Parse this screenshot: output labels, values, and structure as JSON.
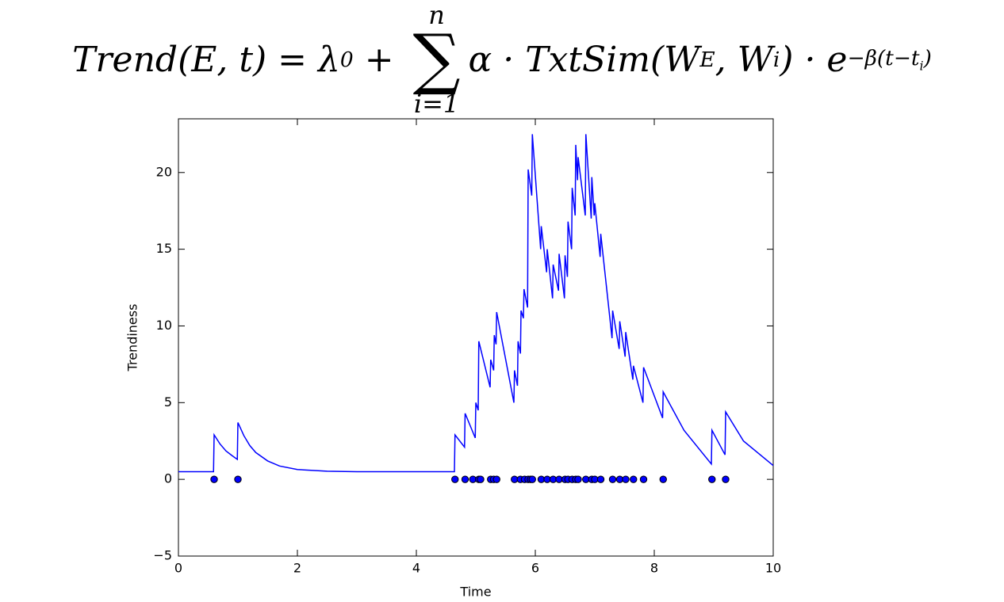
{
  "chart_data": {
    "type": "line",
    "title": {
      "lhs": "Trend(E, t) = λ",
      "lambda_sub": "0",
      "plus": " + ",
      "sum_upper": "n",
      "sum": "∑",
      "sum_lower": "i=1",
      "body": "α · TxtSim(W",
      "w_sub": "E",
      "comma": ", W",
      "wi_sub": "i",
      "close": ") · e",
      "exp": "−β(t−t",
      "exp_sub": "i",
      "exp_close": ")"
    },
    "x_label": "Time",
    "y_label": "Trendiness",
    "xlim": [
      0,
      10
    ],
    "ylim": [
      -5,
      23.5
    ],
    "xticks": [
      0,
      2,
      4,
      6,
      8,
      10
    ],
    "yticks": [
      {
        "value": -5,
        "label": "−5"
      },
      0,
      5,
      10,
      15,
      20
    ],
    "grid": false,
    "series": [
      {
        "kind": "line",
        "color": "#0000ff",
        "x": [
          0,
          0.59,
          0.6,
          0.7,
          0.8,
          0.9,
          0.99,
          1.0,
          1.1,
          1.2,
          1.3,
          1.5,
          1.7,
          2.0,
          2.5,
          3.0,
          4.64,
          4.65,
          4.81,
          4.82,
          4.99,
          5.0,
          5.04,
          5.05,
          5.24,
          5.25,
          5.3,
          5.31,
          5.34,
          5.35,
          5.64,
          5.65,
          5.7,
          5.71,
          5.75,
          5.76,
          5.8,
          5.81,
          5.87,
          5.88,
          5.94,
          5.95,
          6.09,
          6.1,
          6.19,
          6.2,
          6.29,
          6.3,
          6.39,
          6.4,
          6.49,
          6.5,
          6.54,
          6.55,
          6.61,
          6.62,
          6.67,
          6.68,
          6.71,
          6.72,
          6.84,
          6.85,
          6.94,
          6.95,
          6.99,
          7.0,
          7.09,
          7.1,
          7.29,
          7.3,
          7.41,
          7.42,
          7.51,
          7.52,
          7.64,
          7.65,
          7.81,
          7.82,
          8.14,
          8.15,
          8.5,
          8.96,
          8.97,
          9.19,
          9.2,
          9.5,
          10
        ],
        "values": [
          0.5,
          0.5,
          2.9,
          2.3,
          1.85,
          1.55,
          1.3,
          3.7,
          2.85,
          2.2,
          1.75,
          1.2,
          0.87,
          0.64,
          0.53,
          0.5,
          0.5,
          2.9,
          2.1,
          4.3,
          2.7,
          5.0,
          4.5,
          9.0,
          6.0,
          7.8,
          7.1,
          9.4,
          8.8,
          10.9,
          5.0,
          7.1,
          6.1,
          9.0,
          8.2,
          11.0,
          10.5,
          12.4,
          11.2,
          20.2,
          18.5,
          22.5,
          15.0,
          16.5,
          13.5,
          15.0,
          11.8,
          14.0,
          12.3,
          14.7,
          11.8,
          14.6,
          13.2,
          16.8,
          15.0,
          19.0,
          17.2,
          21.8,
          19.5,
          21.0,
          17.2,
          22.5,
          17.0,
          19.7,
          17.2,
          18.0,
          14.5,
          16.0,
          9.2,
          11.0,
          8.5,
          10.3,
          8.0,
          9.6,
          6.5,
          7.4,
          5.0,
          7.3,
          4.0,
          5.7,
          3.2,
          1.0,
          3.2,
          1.6,
          4.4,
          2.5,
          0.9
        ]
      },
      {
        "kind": "scatter",
        "color": "#0000ff",
        "edge_color": "#000000",
        "x": [
          0.6,
          1.0,
          4.65,
          4.82,
          4.95,
          5.05,
          5.08,
          5.25,
          5.3,
          5.35,
          5.65,
          5.75,
          5.82,
          5.88,
          5.92,
          5.95,
          6.1,
          6.2,
          6.3,
          6.4,
          6.5,
          6.55,
          6.62,
          6.68,
          6.72,
          6.85,
          6.95,
          7.0,
          7.1,
          7.3,
          7.42,
          7.52,
          7.65,
          7.82,
          8.15,
          8.97,
          9.2
        ],
        "values": [
          0,
          0,
          0,
          0,
          0,
          0,
          0,
          0,
          0,
          0,
          0,
          0,
          0,
          0,
          0,
          0,
          0,
          0,
          0,
          0,
          0,
          0,
          0,
          0,
          0,
          0,
          0,
          0,
          0,
          0,
          0,
          0,
          0,
          0,
          0,
          0,
          0
        ]
      }
    ]
  }
}
